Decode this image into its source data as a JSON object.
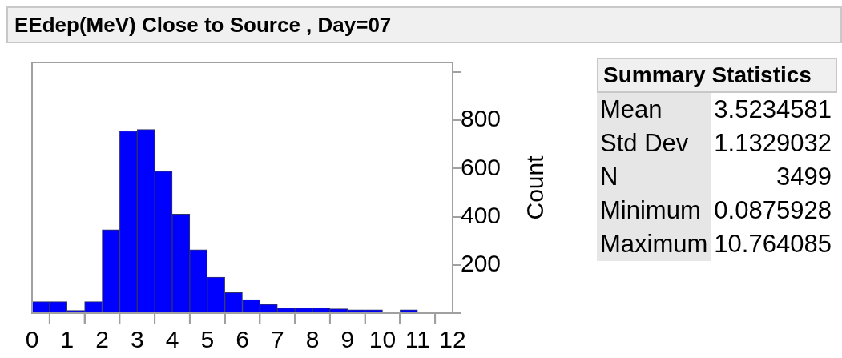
{
  "chart_data": [
    {
      "type": "histogram",
      "title": "EEdep(MeV) Close to Source , Day=07",
      "ylabel": "Count",
      "color": "#0000ff",
      "bins": [
        0,
        0.5,
        1,
        1.5,
        2,
        2.5,
        3,
        3.5,
        4,
        4.5,
        5,
        5.5,
        6,
        6.5,
        7,
        7.5,
        8,
        8.5,
        9,
        9.5,
        10,
        10.5,
        11,
        11.5,
        12
      ],
      "values": [
        48,
        48,
        11,
        48,
        346,
        756,
        762,
        589,
        411,
        263,
        149,
        85,
        56,
        36,
        21,
        21,
        21,
        18,
        14,
        14,
        0,
        14,
        0,
        0
      ],
      "xlim": [
        0,
        12
      ],
      "xticks": [
        0,
        {
          "value": 0.5,
          "label": null
        },
        1,
        {
          "value": 1.5,
          "label": null
        },
        2,
        {
          "value": 2.5,
          "label": null
        },
        3,
        {
          "value": 3.5,
          "label": null
        },
        4,
        {
          "value": 4.5,
          "label": null
        },
        5,
        {
          "value": 5.5,
          "label": null
        },
        6,
        {
          "value": 6.5,
          "label": null
        },
        7,
        {
          "value": 7.5,
          "label": null
        },
        8,
        {
          "value": 8.5,
          "label": null
        },
        9,
        {
          "value": 9.5,
          "label": null
        },
        10,
        {
          "value": 10.5,
          "label": null
        },
        11,
        {
          "value": 11.5,
          "label": null
        },
        12
      ],
      "ylim": [
        0,
        1040
      ],
      "yticks": [
        {
          "value": 0,
          "label": null
        },
        200,
        400,
        600,
        800,
        {
          "value": 1000,
          "label": null
        }
      ],
      "grid": false,
      "legend": false
    },
    {
      "type": "other",
      "title": "Summary Statistics",
      "annotations": [
        "Mean",
        "3.5234581",
        "Std Dev",
        "1.1329032",
        "N",
        "3499",
        "Minimum",
        "0.0875928",
        "Maximum",
        "10.764085"
      ]
    }
  ]
}
